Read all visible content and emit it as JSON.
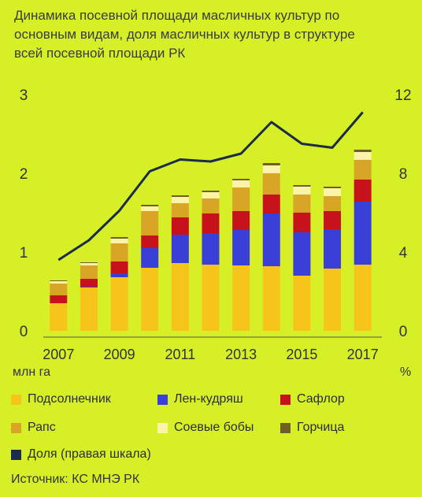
{
  "header": {
    "title_line1": "Динамика посевной площади масличных культур по",
    "title_line2": "основным видам, доля масличных культур в структуре",
    "title_line3": "всей посевной площади РК"
  },
  "chart_data": {
    "type": "bar",
    "stacked": true,
    "categories": [
      "2007",
      "2008",
      "2009",
      "2010",
      "2011",
      "2012",
      "2013",
      "2014",
      "2015",
      "2016",
      "2017"
    ],
    "x_tick_labels": [
      "2007",
      "2009",
      "2011",
      "2013",
      "2015",
      "2017"
    ],
    "ylabel_left": "млн га",
    "ylabel_right": "%",
    "ylim_left": [
      0,
      3
    ],
    "ylim_right": [
      0,
      12
    ],
    "yticks_left": [
      "0",
      "1",
      "2",
      "3"
    ],
    "yticks_right": [
      "0",
      "4",
      "8",
      "12"
    ],
    "grid": false,
    "series": [
      {
        "name": "Подсолнечник",
        "color": "#f6c41a",
        "values": [
          0.35,
          0.55,
          0.68,
          0.8,
          0.86,
          0.84,
          0.83,
          0.82,
          0.7,
          0.79,
          0.84
        ]
      },
      {
        "name": "Лен-кудряш",
        "color": "#3a3fd8",
        "values": [
          0.0,
          0.01,
          0.05,
          0.25,
          0.36,
          0.4,
          0.45,
          0.67,
          0.55,
          0.5,
          0.8
        ]
      },
      {
        "name": "Сафлор",
        "color": "#c8121b",
        "values": [
          0.1,
          0.1,
          0.15,
          0.16,
          0.22,
          0.25,
          0.24,
          0.24,
          0.25,
          0.23,
          0.28
        ]
      },
      {
        "name": "Рапс",
        "color": "#d9a526",
        "values": [
          0.15,
          0.17,
          0.23,
          0.31,
          0.18,
          0.19,
          0.3,
          0.27,
          0.23,
          0.19,
          0.25
        ]
      },
      {
        "name": "Соевые бобы",
        "color": "#fbf4a8",
        "values": [
          0.03,
          0.03,
          0.06,
          0.06,
          0.08,
          0.08,
          0.09,
          0.1,
          0.1,
          0.1,
          0.1
        ]
      },
      {
        "name": "Горчица",
        "color": "#6d5f27",
        "values": [
          0.01,
          0.01,
          0.02,
          0.02,
          0.02,
          0.02,
          0.02,
          0.03,
          0.02,
          0.02,
          0.03
        ]
      }
    ],
    "line_series": {
      "name": "Доля (правая шкала)",
      "color": "#1a2b4c",
      "axis": "right",
      "values": [
        3.6,
        4.6,
        6.1,
        8.1,
        8.7,
        8.6,
        9.0,
        10.6,
        9.5,
        9.3,
        11.1
      ]
    }
  },
  "legend": {
    "items": [
      {
        "label": "Подсолнечник",
        "color": "#f6c41a"
      },
      {
        "label": "Лен-кудряш",
        "color": "#3a3fd8"
      },
      {
        "label": "Сафлор",
        "color": "#c8121b"
      },
      {
        "label": "Рапс",
        "color": "#d9a526"
      },
      {
        "label": "Соевые бобы",
        "color": "#fbf4a8"
      },
      {
        "label": "Горчица",
        "color": "#6d5f27"
      },
      {
        "label": "Доля (правая шкала)",
        "color": "#1a2b4c"
      }
    ]
  },
  "footer": {
    "source": "Источник: КС МНЭ РК"
  }
}
